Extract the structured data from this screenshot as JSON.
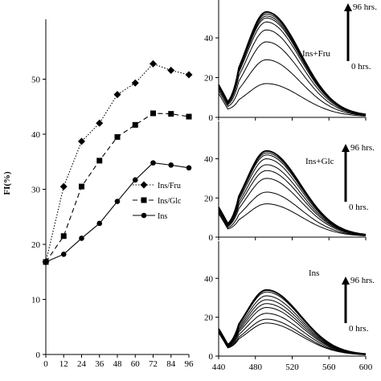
{
  "chart_data": [
    {
      "type": "line",
      "ylabel": "FI(%)",
      "xlabel": "",
      "x": [
        0,
        12,
        24,
        36,
        48,
        60,
        72,
        84,
        96
      ],
      "xlim": [
        0,
        96
      ],
      "ylim": [
        0,
        60
      ],
      "yticks": [
        0,
        10,
        20,
        30,
        40,
        50
      ],
      "legend_position": "center-left",
      "series": [
        {
          "name": "Ins/Fru",
          "marker": "diamond",
          "line": "dotted",
          "values": [
            16.8,
            30.5,
            38.7,
            42.0,
            47.2,
            49.3,
            52.8,
            51.6,
            50.8
          ]
        },
        {
          "name": "Ins/Glc",
          "marker": "square",
          "line": "dashed",
          "values": [
            16.8,
            21.5,
            30.5,
            35.2,
            39.5,
            41.7,
            43.8,
            43.7,
            43.2
          ]
        },
        {
          "name": "Ins",
          "marker": "circle",
          "line": "solid",
          "values": [
            16.8,
            18.2,
            21.1,
            23.8,
            27.8,
            31.7,
            34.8,
            34.4,
            33.9
          ]
        }
      ]
    },
    {
      "type": "line",
      "annotation": "Ins+Fru",
      "arrow_top": "96 hrs.",
      "arrow_bottom": "0 hrs.",
      "xlim": [
        440,
        600
      ],
      "ylim": [
        0,
        55
      ],
      "yticks": [
        0,
        20,
        40
      ],
      "peak_x": 492,
      "peaks": [
        17,
        29,
        38,
        44,
        48,
        50,
        51,
        52,
        53
      ]
    },
    {
      "type": "line",
      "annotation": "Ins+Glc",
      "arrow_top": "96 hrs.",
      "arrow_bottom": "0 hrs.",
      "xlim": [
        440,
        600
      ],
      "ylim": [
        0,
        55
      ],
      "yticks": [
        0,
        20,
        40
      ],
      "peak_x": 492,
      "peaks": [
        17,
        23,
        30,
        34,
        37,
        40,
        42,
        43,
        44
      ]
    },
    {
      "type": "line",
      "annotation": "Ins",
      "arrow_top": "96 hrs.",
      "arrow_bottom": "0 hrs.",
      "xlim": [
        440,
        600
      ],
      "xticks": [
        440,
        480,
        520,
        560,
        600
      ],
      "ylim": [
        0,
        55
      ],
      "yticks": [
        0,
        20,
        40
      ],
      "peak_x": 492,
      "peaks": [
        17,
        19,
        22,
        25,
        27,
        29,
        31,
        33,
        34
      ]
    }
  ]
}
